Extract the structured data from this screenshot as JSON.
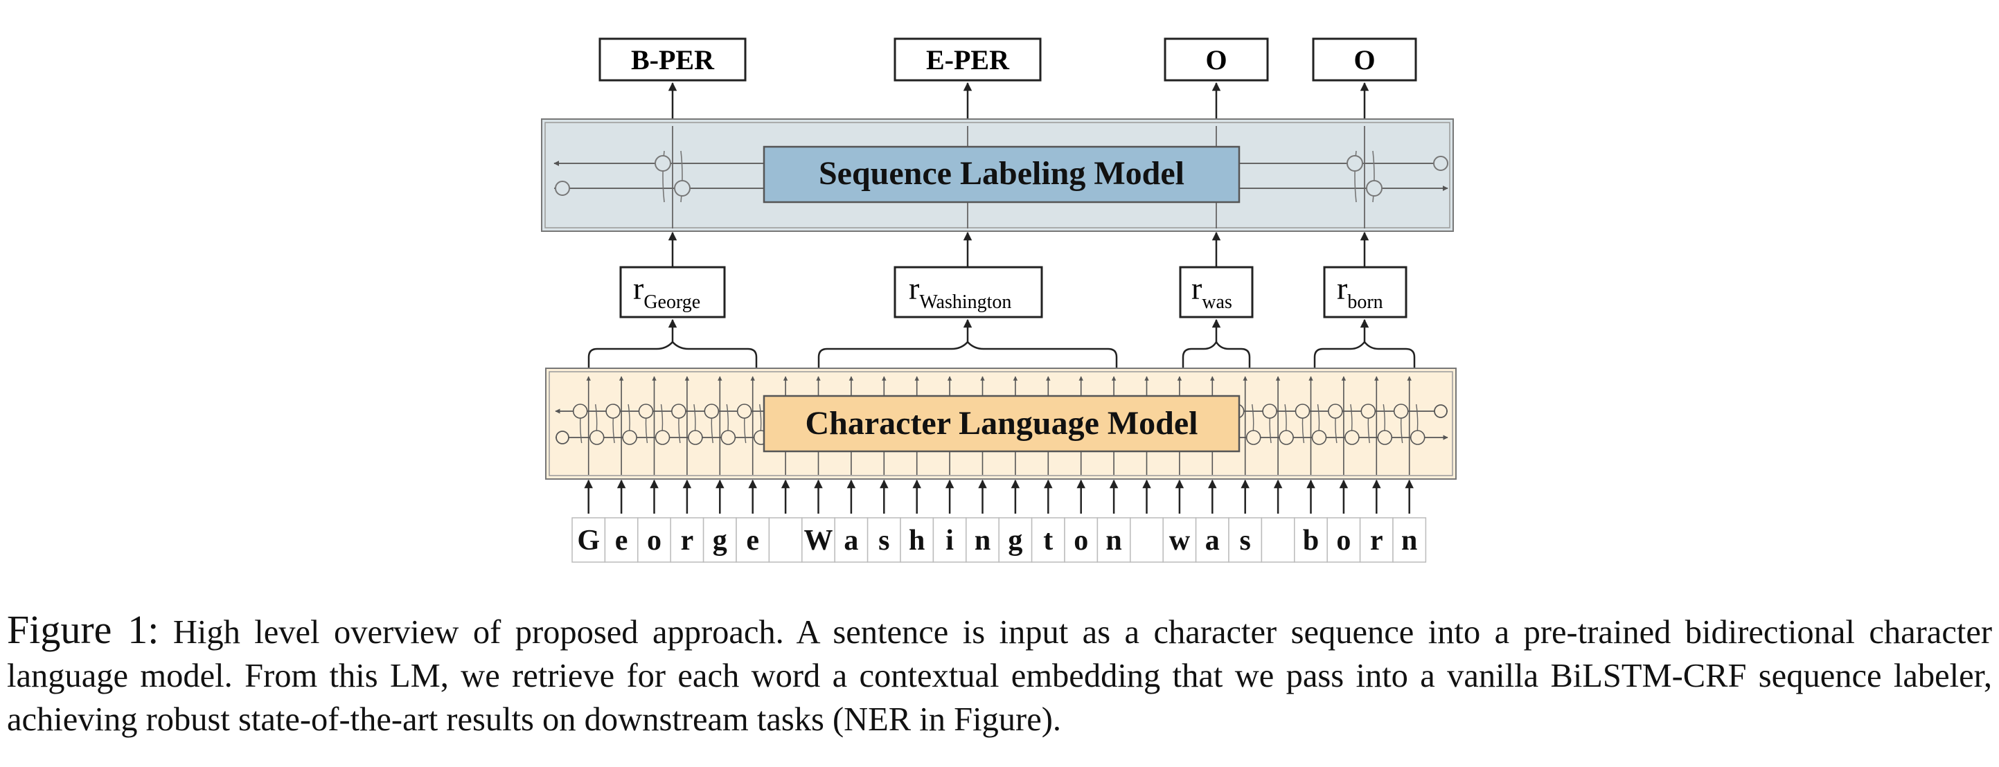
{
  "figure": {
    "output_labels": [
      "B-PER",
      "E-PER",
      "O",
      "O"
    ],
    "sequence_model_label": "Sequence Labeling Model",
    "char_model_label": "Character Language Model",
    "embeddings": [
      {
        "base": "r",
        "sub": "George"
      },
      {
        "base": "r",
        "sub": "Washington"
      },
      {
        "base": "r",
        "sub": "was"
      },
      {
        "base": "r",
        "sub": "born"
      }
    ],
    "characters": [
      "G",
      "e",
      "o",
      "r",
      "g",
      "e",
      " ",
      "W",
      "a",
      "s",
      "h",
      "i",
      "n",
      "g",
      "t",
      "o",
      "n",
      " ",
      "w",
      "a",
      "s",
      " ",
      "b",
      "o",
      "r",
      "n"
    ],
    "colors": {
      "sequence_band": "#dae3e7",
      "sequence_box": "#9bbdd4",
      "char_band": "#fdf0da",
      "char_box": "#f9d49c"
    }
  },
  "caption": {
    "label": "Figure 1:",
    "text": " High level overview of proposed approach. A sentence is input as a character sequence into a pre-trained bidirectional character language model. From this LM, we retrieve for each word a contextual embedding that we pass into a vanilla BiLSTM-CRF sequence labeler, achieving robust state-of-the-art results on downstream tasks (NER in Figure)."
  }
}
